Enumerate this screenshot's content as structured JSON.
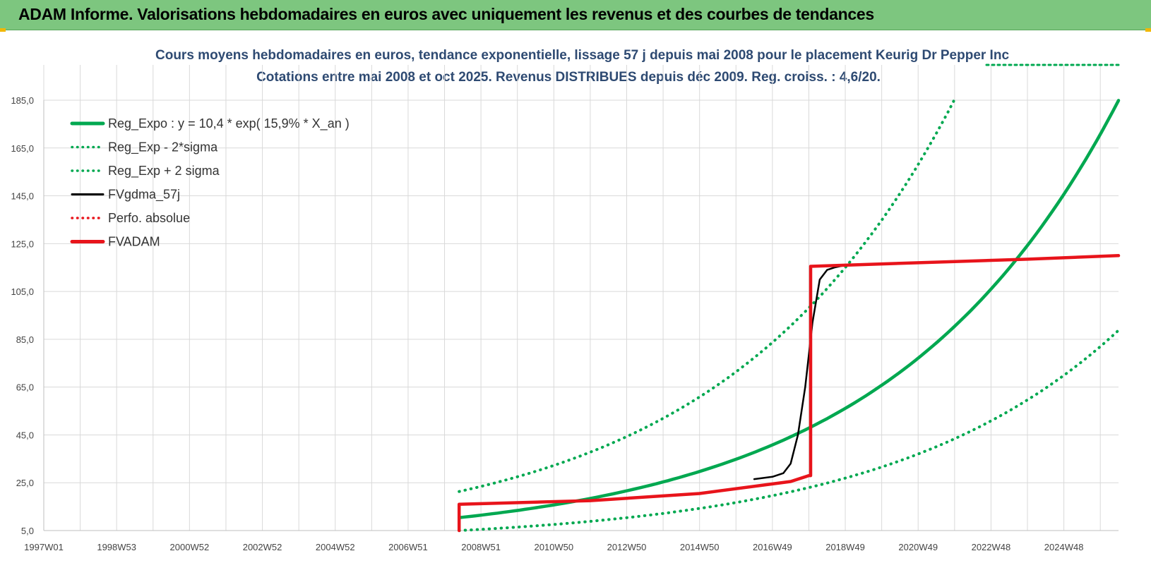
{
  "header": {
    "title": "ADAM Informe. Valorisations hebdomadaires en euros avec uniquement les revenus et des courbes de tendances"
  },
  "colors": {
    "header_bg": "#7dc67f",
    "green": "#00a850",
    "black": "#000000",
    "red": "#e8141b",
    "title": "#2e4a72",
    "grid": "#d9d9d9"
  },
  "chart_data": {
    "type": "line",
    "title_line1": "Cours moyens hebdomadaires en euros, tendance exponentielle, lissage 57 j depuis mai 2008 pour le placement Keurig Dr Pepper Inc",
    "title_line2": "Cotations entre mai 2008 et oct 2025. Revenus DISTRIBUES depuis déc 2009. Reg. croiss. : 4,6/20.",
    "x_ticks": [
      "1997W01",
      "1998W53",
      "2000W52",
      "2002W52",
      "2004W52",
      "2006W51",
      "2008W51",
      "2010W50",
      "2012W50",
      "2014W50",
      "2016W49",
      "2018W49",
      "2020W49",
      "2022W48",
      "2024W48"
    ],
    "x_tick_years": [
      1997.0,
      1999.0,
      2001.0,
      2003.0,
      2005.0,
      2007.0,
      2009.0,
      2011.0,
      2013.0,
      2015.0,
      2017.0,
      2019.0,
      2021.0,
      2023.0,
      2025.0
    ],
    "xlim": [
      1997.0,
      2026.5
    ],
    "y_ticks": [
      "5,0",
      "25,0",
      "45,0",
      "65,0",
      "85,0",
      "105,0",
      "125,0",
      "145,0",
      "165,0",
      "185,0"
    ],
    "ylim": [
      5,
      185
    ],
    "grid": true,
    "legend_position": "top-left",
    "series": [
      {
        "name": "Reg_Expo : y = 10,4 * exp( 15,9% *  X_an )",
        "color": "#00a850",
        "style": "solid",
        "x": [
          2008.4,
          2010,
          2012,
          2014,
          2016,
          2018,
          2020,
          2022,
          2024,
          2026.5
        ],
        "y": [
          10.4,
          13.4,
          18.4,
          25.2,
          34.6,
          47.6,
          65.3,
          89.8,
          123.3,
          182.0
        ]
      },
      {
        "name": "Reg_Exp - 2*sigma",
        "color": "#00a850",
        "style": "dotted",
        "x": [
          2008.4,
          2010,
          2012,
          2014,
          2016,
          2018,
          2020,
          2022,
          2024,
          2026.5
        ],
        "y": [
          5.0,
          6.5,
          8.9,
          12.3,
          16.9,
          23.2,
          31.8,
          43.8,
          60.1,
          88.7
        ]
      },
      {
        "name": "Reg_Exp + 2 sigma",
        "color": "#00a850",
        "style": "dotted",
        "x": [
          2008.4,
          2010,
          2012,
          2014,
          2016,
          2018,
          2020,
          2022
        ],
        "y": [
          21.3,
          27.6,
          37.8,
          51.9,
          71.4,
          98.0,
          134.5,
          184.8
        ]
      },
      {
        "name": "FVgdma_57j",
        "color": "#000000",
        "style": "solid",
        "x": [
          2016.5,
          2017.0,
          2017.3,
          2017.5,
          2017.7,
          2017.9,
          2018.1,
          2018.3,
          2018.5,
          2018.7,
          2019.0
        ],
        "y": [
          26.5,
          27.5,
          29.0,
          33.0,
          45.0,
          65.0,
          92.0,
          110.0,
          114.0,
          115.0,
          116.0
        ]
      },
      {
        "name": "Perfo. absolue",
        "color": "#e8141b",
        "style": "dotted",
        "x": [],
        "y": []
      },
      {
        "name": "FVADAM",
        "color": "#e8141b",
        "style": "solid",
        "x": [
          2008.4,
          2008.4,
          2012.0,
          2015.0,
          2017.5,
          2018.0,
          2018.05,
          2018.05,
          2020,
          2022,
          2024,
          2026.5
        ],
        "y": [
          5.0,
          16.0,
          17.5,
          20.5,
          25.5,
          28.0,
          28.0,
          115.5,
          116.5,
          117.5,
          118.5,
          120.0
        ]
      }
    ]
  }
}
